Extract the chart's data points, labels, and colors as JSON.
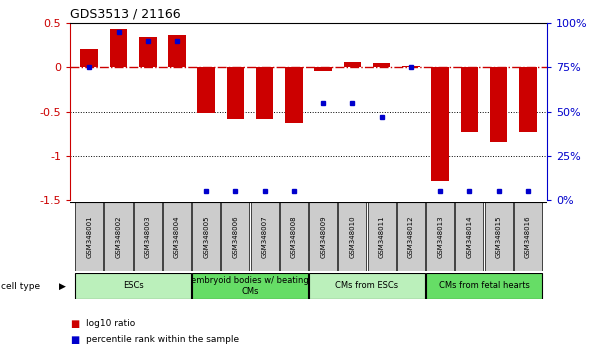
{
  "title": "GDS3513 / 21166",
  "samples": [
    "GSM348001",
    "GSM348002",
    "GSM348003",
    "GSM348004",
    "GSM348005",
    "GSM348006",
    "GSM348007",
    "GSM348008",
    "GSM348009",
    "GSM348010",
    "GSM348011",
    "GSM348012",
    "GSM348013",
    "GSM348014",
    "GSM348015",
    "GSM348016"
  ],
  "log10_ratio": [
    0.21,
    0.43,
    0.34,
    0.37,
    -0.52,
    -0.58,
    -0.58,
    -0.63,
    -0.04,
    0.06,
    0.05,
    0.01,
    -1.28,
    -0.73,
    -0.85,
    -0.73
  ],
  "percentile_rank": [
    75,
    95,
    90,
    90,
    5,
    5,
    5,
    5,
    55,
    55,
    47,
    75,
    5,
    5,
    5,
    5
  ],
  "cell_type_groups": [
    {
      "label": "ESCs",
      "start": 0,
      "end": 3,
      "color": "#bbf0bb"
    },
    {
      "label": "embryoid bodies w/ beating\nCMs",
      "start": 4,
      "end": 7,
      "color": "#66dd66"
    },
    {
      "label": "CMs from ESCs",
      "start": 8,
      "end": 11,
      "color": "#bbf0bb"
    },
    {
      "label": "CMs from fetal hearts",
      "start": 12,
      "end": 15,
      "color": "#66dd66"
    }
  ],
  "bar_color": "#cc0000",
  "dot_color": "#0000cc",
  "ylim_left": [
    -1.5,
    0.5
  ],
  "ylim_right": [
    0,
    100
  ],
  "ylabel_left_color": "#cc0000",
  "ylabel_right_color": "#0000cc",
  "yticks_left": [
    -1.5,
    -1.0,
    -0.5,
    0.0,
    0.5
  ],
  "ytick_labels_left": [
    "-1.5",
    "-1",
    "-0.5",
    "0",
    "0.5"
  ],
  "yticks_right": [
    0,
    25,
    50,
    75,
    100
  ],
  "ytick_labels_right": [
    "0%",
    "25%",
    "50%",
    "75%",
    "100%"
  ],
  "hline_color": "#cc0000",
  "grid_color": "black",
  "legend_items": [
    {
      "label": "log10 ratio",
      "color": "#cc0000"
    },
    {
      "label": "percentile rank within the sample",
      "color": "#0000cc"
    }
  ],
  "cell_type_label": "cell type",
  "background_color": "#ffffff"
}
